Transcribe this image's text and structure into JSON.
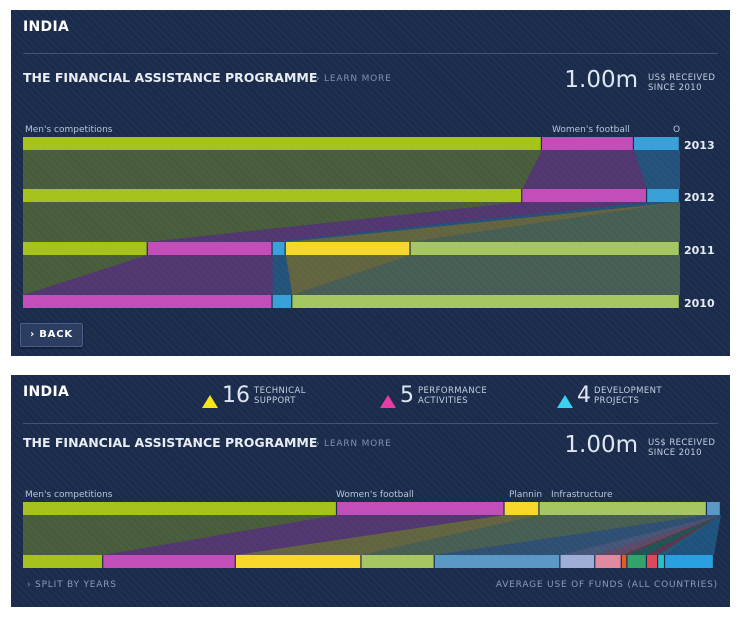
{
  "top_panel": {
    "country": "INDIA",
    "programme_title": "THE FINANCIAL ASSISTANCE PROGRAMME",
    "learn_more": "› LEARN MORE",
    "amount": "1.00m",
    "amount_label_1": "US$ RECEIVED",
    "amount_label_2": "SINCE 2010",
    "back_label": "› BACK",
    "segment_labels": [
      "Men's competitions",
      "Women's football",
      "O"
    ]
  },
  "bottom_panel": {
    "country": "INDIA",
    "stats": [
      {
        "value": "16",
        "label_1": "TECHNICAL",
        "label_2": "SUPPORT",
        "color": "#f7e617"
      },
      {
        "value": "5",
        "label_1": "PERFORMANCE",
        "label_2": "ACTIVITIES",
        "color": "#ea3aa3"
      },
      {
        "value": "4",
        "label_1": "DEVELOPMENT",
        "label_2": "PROJECTS",
        "color": "#39d2f0"
      }
    ],
    "programme_title": "THE FINANCIAL ASSISTANCE PROGRAMME",
    "learn_more": "› LEARN MORE",
    "amount": "1.00m",
    "amount_label_1": "US$ RECEIVED",
    "amount_label_2": "SINCE 2010",
    "segment_labels": [
      "Men's competitions",
      "Women's football",
      "Plannin",
      "Infrastructure"
    ],
    "split_by_years": "› SPLIT BY YEARS",
    "average_label": "AVERAGE USE OF FUNDS (ALL COUNTRIES)"
  },
  "chart_data": [
    {
      "type": "bar",
      "stacked": true,
      "orientation": "horizontal",
      "categories": [
        "2013",
        "2012",
        "2011",
        "2010"
      ],
      "series": [
        {
          "name": "Men's competitions",
          "color": "#a6c21c",
          "values": [
            0.79,
            0.76,
            0.19,
            0.0
          ]
        },
        {
          "name": "Women's football",
          "color": "#c24eb9",
          "values": [
            0.14,
            0.19,
            0.19,
            0.38
          ]
        },
        {
          "name": "Other",
          "color": "#3aa0d8",
          "values": [
            0.07,
            0.05,
            0.02,
            0.03
          ]
        },
        {
          "name": "",
          "color": "#f7d82a",
          "values": [
            0.0,
            0.0,
            0.19,
            0.0
          ]
        },
        {
          "name": "",
          "color": "#a5c661",
          "values": [
            0.0,
            0.0,
            0.41,
            0.59
          ]
        }
      ]
    },
    {
      "type": "bar",
      "stacked": true,
      "orientation": "horizontal",
      "categories": [
        "India",
        "Average (all countries)"
      ],
      "series": [
        {
          "name": "Men's competitions",
          "color": "#a6c21c",
          "values": [
            0.45,
            0.115
          ]
        },
        {
          "name": "Women's football",
          "color": "#c24eb9",
          "values": [
            0.24,
            0.19
          ]
        },
        {
          "name": "Plannin",
          "color": "#f7d82a",
          "values": [
            0.05,
            0.18
          ]
        },
        {
          "name": "Infrastructure",
          "color": "#a5c661",
          "values": [
            0.24,
            0.105
          ]
        },
        {
          "name": "",
          "color": "#5a98c6",
          "values": [
            0.02,
            0.18
          ]
        },
        {
          "name": "",
          "color": "#9eaed6",
          "values": [
            0.0,
            0.05
          ]
        },
        {
          "name": "",
          "color": "#e08aa0",
          "values": [
            0.0,
            0.038
          ]
        },
        {
          "name": "",
          "color": "#e35d2b",
          "values": [
            0.0,
            0.008
          ]
        },
        {
          "name": "",
          "color": "#32a36b",
          "values": [
            0.0,
            0.028
          ]
        },
        {
          "name": "",
          "color": "#e0485a",
          "values": [
            0.0,
            0.016
          ]
        },
        {
          "name": "",
          "color": "#25c0c8",
          "values": [
            0.0,
            0.01
          ]
        },
        {
          "name": "",
          "color": "#2ba0e0",
          "values": [
            0.0,
            0.07
          ]
        }
      ]
    }
  ]
}
